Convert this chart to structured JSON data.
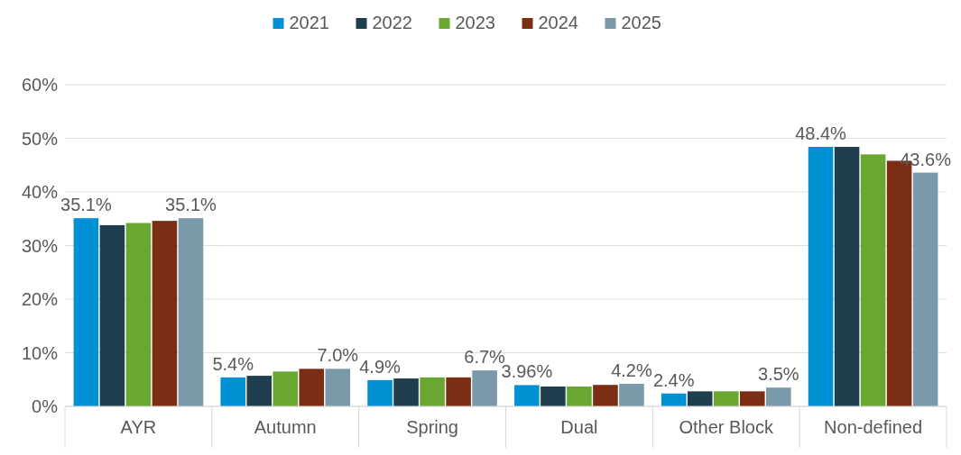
{
  "chart_data": {
    "type": "bar",
    "categories": [
      "AYR",
      "Autumn",
      "Spring",
      "Dual",
      "Other Block",
      "Non-defined"
    ],
    "series": [
      {
        "name": "2021",
        "color": "#0090d4",
        "values": [
          35.1,
          5.4,
          4.9,
          3.96,
          2.4,
          48.4
        ],
        "value_labels": [
          "35.1%",
          "5.4%",
          "4.9%",
          "3.96%",
          "2.4%",
          "48.4%"
        ]
      },
      {
        "name": "2022",
        "color": "#1f3f4f",
        "values": [
          33.8,
          5.7,
          5.2,
          3.7,
          2.8,
          48.4
        ]
      },
      {
        "name": "2023",
        "color": "#6aa632",
        "values": [
          34.2,
          6.5,
          5.4,
          3.7,
          2.8,
          47.0
        ]
      },
      {
        "name": "2024",
        "color": "#7b2e14",
        "values": [
          34.6,
          7.0,
          5.4,
          4.0,
          2.8,
          45.8
        ]
      },
      {
        "name": "2025",
        "color": "#7a9aaa",
        "values": [
          35.1,
          7.0,
          6.7,
          4.2,
          3.5,
          43.6
        ],
        "value_labels": [
          "35.1%",
          "7.0%",
          "6.7%",
          "4.2%",
          "3.5%",
          "43.6%"
        ]
      }
    ],
    "ylim": [
      0,
      60
    ],
    "yticks": [
      {
        "value": 0,
        "label": "0%"
      },
      {
        "value": 10,
        "label": "10%"
      },
      {
        "value": 20,
        "label": "20%"
      },
      {
        "value": 30,
        "label": "30%"
      },
      {
        "value": 40,
        "label": "40%"
      },
      {
        "value": 50,
        "label": "50%"
      },
      {
        "value": 60,
        "label": "60%"
      }
    ],
    "grid": "y",
    "legend": "top"
  }
}
